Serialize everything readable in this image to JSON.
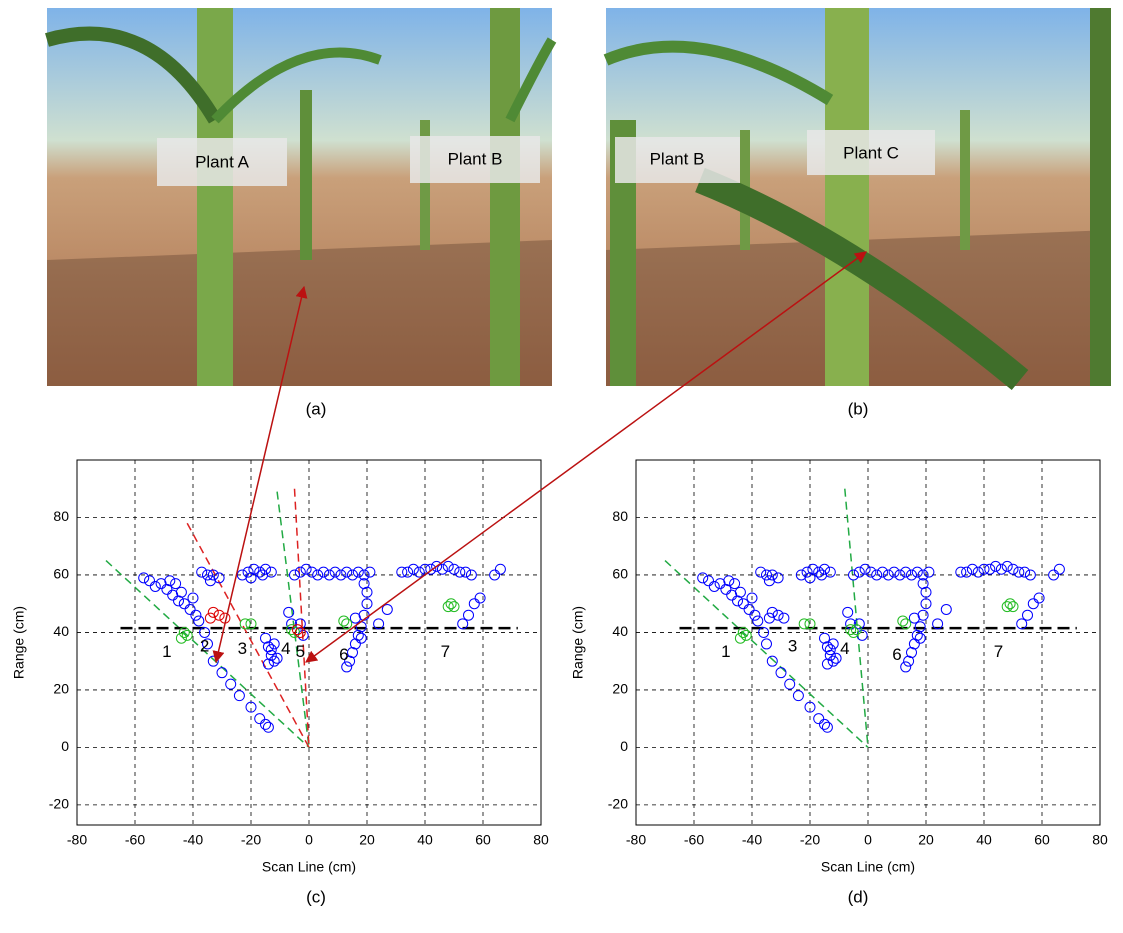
{
  "photos": [
    {
      "caption": "(a)",
      "labels": [
        "Plant A",
        "Plant B"
      ]
    },
    {
      "caption": "(b)",
      "labels": [
        "Plant B",
        "Plant C"
      ]
    }
  ],
  "chart_data": [
    {
      "type": "scatter",
      "caption": "(c)",
      "xlabel": "Scan Line (cm)",
      "ylabel": "Range (cm)",
      "xlim": [
        -80,
        80
      ],
      "ylim": [
        -27,
        100
      ],
      "xticks": [
        -80,
        -60,
        -40,
        -20,
        0,
        20,
        40,
        60,
        80
      ],
      "yticks": [
        -20,
        0,
        20,
        40,
        60,
        80
      ],
      "grid": true,
      "series": [
        {
          "color": "#0000ff",
          "x": [
            -57,
            -55,
            -53,
            -51,
            -49,
            -47,
            -45,
            -43,
            -41,
            -39,
            -38,
            -40,
            -44,
            -46,
            -48,
            -36,
            -35,
            -33,
            -30,
            -27,
            -24,
            -20,
            -17,
            -15,
            -14,
            -37,
            -35,
            -33,
            -31,
            -34,
            -23,
            -21,
            -19,
            -17,
            -15,
            -13,
            -20,
            -16,
            -15,
            -14,
            -13,
            -12,
            -14,
            -11,
            -13,
            -12,
            -5,
            -3,
            -1,
            1,
            3,
            5,
            7,
            9,
            11,
            13,
            15,
            17,
            19,
            21,
            14,
            15,
            16,
            17,
            18,
            19,
            20,
            20,
            19,
            13,
            16,
            18,
            32,
            34,
            36,
            38,
            40,
            42,
            44,
            46,
            48,
            50,
            52,
            54,
            56,
            64,
            66,
            53,
            55,
            57,
            59,
            27,
            24,
            -7,
            -6,
            -2,
            -3
          ],
          "y": [
            59,
            58,
            56,
            57,
            55,
            53,
            51,
            50,
            48,
            46,
            44,
            52,
            54,
            57,
            58,
            40,
            36,
            30,
            26,
            22,
            18,
            14,
            10,
            8,
            7,
            61,
            60,
            60,
            59,
            58,
            60,
            61,
            62,
            61,
            62,
            61,
            59,
            60,
            38,
            35,
            32,
            30,
            29,
            31,
            34,
            36,
            60,
            61,
            62,
            61,
            60,
            61,
            60,
            61,
            60,
            61,
            60,
            61,
            60,
            61,
            30,
            33,
            36,
            39,
            42,
            46,
            50,
            54,
            57,
            28,
            45,
            38,
            61,
            61,
            62,
            61,
            62,
            62,
            63,
            62,
            63,
            62,
            61,
            61,
            60,
            60,
            62,
            43,
            46,
            50,
            52,
            48,
            43,
            47,
            43,
            39,
            43
          ]
        },
        {
          "color": "#22bb22",
          "x": [
            -44,
            -42,
            -43,
            -22,
            -20,
            -6,
            -5,
            13,
            12,
            48,
            49,
            50
          ],
          "y": [
            38,
            39,
            40,
            43,
            43,
            41,
            40,
            43,
            44,
            49,
            50,
            49
          ]
        },
        {
          "color": "#dd0000",
          "x": [
            -33,
            -31,
            -29,
            -34,
            -4,
            -3
          ],
          "y": [
            47,
            46,
            45,
            45,
            41,
            40
          ]
        }
      ],
      "lines": [
        {
          "color": "#22aa44",
          "x": [
            -70,
            0
          ],
          "y": [
            65,
            0
          ]
        },
        {
          "color": "#dd2222",
          "x": [
            -42,
            0
          ],
          "y": [
            78,
            0
          ]
        },
        {
          "color": "#22aa44",
          "x": [
            -11,
            0
          ],
          "y": [
            89,
            0
          ]
        },
        {
          "color": "#dd2222",
          "x": [
            -5,
            0
          ],
          "y": [
            90,
            0
          ]
        },
        {
          "color": "#000000",
          "x": [
            -65,
            72
          ],
          "y": [
            41.5,
            41.5
          ]
        }
      ],
      "annotations": [
        {
          "text": "1",
          "x": -49,
          "y": 33
        },
        {
          "text": "2",
          "x": -36,
          "y": 35
        },
        {
          "text": "3",
          "x": -23,
          "y": 34
        },
        {
          "text": "4",
          "x": -8,
          "y": 34
        },
        {
          "text": "5",
          "x": -3,
          "y": 33
        },
        {
          "text": "6",
          "x": 12,
          "y": 32
        },
        {
          "text": "7",
          "x": 47,
          "y": 33
        }
      ]
    },
    {
      "type": "scatter",
      "caption": "(d)",
      "xlabel": "Scan Line (cm)",
      "ylabel": "Range (cm)",
      "xlim": [
        -80,
        80
      ],
      "ylim": [
        -27,
        100
      ],
      "xticks": [
        -80,
        -60,
        -40,
        -20,
        0,
        20,
        40,
        60,
        80
      ],
      "yticks": [
        -20,
        0,
        20,
        40,
        60,
        80
      ],
      "grid": true,
      "series": [
        {
          "color": "#0000ff",
          "x": [
            -57,
            -55,
            -53,
            -51,
            -49,
            -47,
            -45,
            -43,
            -41,
            -39,
            -38,
            -40,
            -44,
            -46,
            -48,
            -36,
            -35,
            -33,
            -30,
            -27,
            -24,
            -20,
            -17,
            -15,
            -14,
            -37,
            -35,
            -33,
            -31,
            -34,
            -23,
            -21,
            -19,
            -17,
            -15,
            -13,
            -20,
            -16,
            -15,
            -14,
            -13,
            -12,
            -14,
            -11,
            -13,
            -12,
            -5,
            -3,
            -1,
            1,
            3,
            5,
            7,
            9,
            11,
            13,
            15,
            17,
            19,
            21,
            14,
            15,
            16,
            17,
            18,
            19,
            20,
            20,
            19,
            13,
            16,
            18,
            32,
            34,
            36,
            38,
            40,
            42,
            44,
            46,
            48,
            50,
            52,
            54,
            56,
            64,
            66,
            53,
            55,
            57,
            59,
            27,
            24,
            -7,
            -6,
            -2,
            -3,
            -33,
            -31,
            -29,
            -34
          ],
          "y": [
            59,
            58,
            56,
            57,
            55,
            53,
            51,
            50,
            48,
            46,
            44,
            52,
            54,
            57,
            58,
            40,
            36,
            30,
            26,
            22,
            18,
            14,
            10,
            8,
            7,
            61,
            60,
            60,
            59,
            58,
            60,
            61,
            62,
            61,
            62,
            61,
            59,
            60,
            38,
            35,
            32,
            30,
            29,
            31,
            34,
            36,
            60,
            61,
            62,
            61,
            60,
            61,
            60,
            61,
            60,
            61,
            60,
            61,
            60,
            61,
            30,
            33,
            36,
            39,
            42,
            46,
            50,
            54,
            57,
            28,
            45,
            38,
            61,
            61,
            62,
            61,
            62,
            62,
            63,
            62,
            63,
            62,
            61,
            61,
            60,
            60,
            62,
            43,
            46,
            50,
            52,
            48,
            43,
            47,
            43,
            39,
            43,
            47,
            46,
            45,
            45
          ]
        },
        {
          "color": "#22bb22",
          "x": [
            -44,
            -42,
            -43,
            -22,
            -20,
            -6,
            -5,
            -4,
            13,
            12,
            48,
            49,
            50
          ],
          "y": [
            38,
            39,
            40,
            43,
            43,
            41,
            40,
            41,
            43,
            44,
            49,
            50,
            49
          ]
        }
      ],
      "lines": [
        {
          "color": "#22aa44",
          "x": [
            -70,
            0
          ],
          "y": [
            65,
            0
          ]
        },
        {
          "color": "#22aa44",
          "x": [
            -8,
            0
          ],
          "y": [
            90,
            0
          ]
        },
        {
          "color": "#000000",
          "x": [
            -65,
            72
          ],
          "y": [
            41.5,
            41.5
          ]
        }
      ],
      "annotations": [
        {
          "text": "1",
          "x": -49,
          "y": 33
        },
        {
          "text": "3",
          "x": -26,
          "y": 35
        },
        {
          "text": "4",
          "x": -8,
          "y": 34
        },
        {
          "text": "6",
          "x": 10,
          "y": 32
        },
        {
          "text": "7",
          "x": 45,
          "y": 33
        }
      ]
    }
  ]
}
